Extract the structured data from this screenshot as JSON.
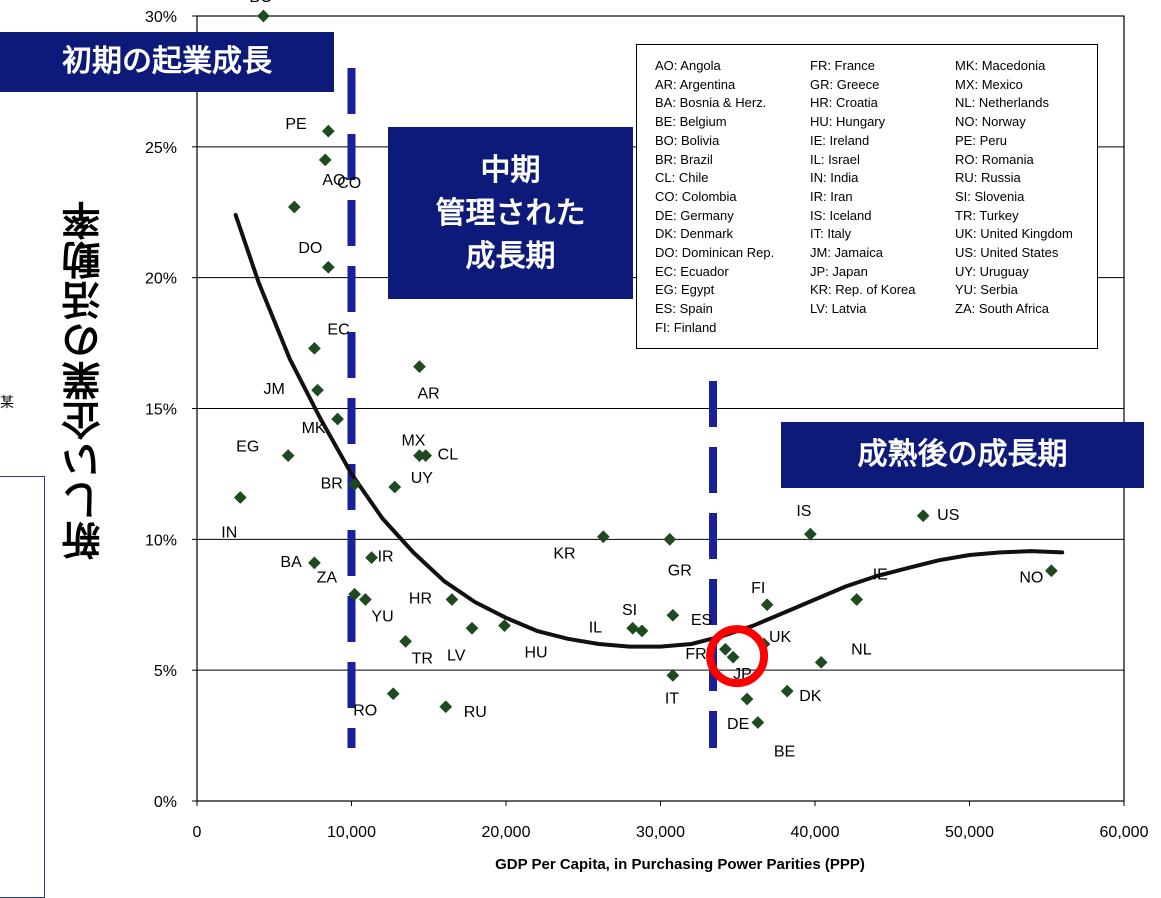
{
  "phases": {
    "early": "初期の起業成長",
    "mid": [
      "中期",
      "管理された",
      "成長期"
    ],
    "late": "成熟後の成長期"
  },
  "side_glyph": "某",
  "legend": [
    [
      "AO: Angola",
      "AR: Argentina",
      "BA: Bosnia & Herz.",
      "BE: Belgium",
      "BO: Bolivia",
      "BR: Brazil",
      "CL: Chile",
      "CO: Colombia",
      "DE: Germany",
      "DK: Denmark",
      "DO: Dominican Rep.",
      "EC: Ecuador",
      "EG: Egypt",
      "ES: Spain",
      "FI:  Finland"
    ],
    [
      "FR: France",
      "GR: Greece",
      "HR: Croatia",
      "HU: Hungary",
      "IE:  Ireland",
      "IL:  Israel",
      "IN:  India",
      "IR:  Iran",
      "IS:  Iceland",
      "IT:  Italy",
      "JM: Jamaica",
      "JP: Japan",
      "KR: Rep. of Korea",
      "LV:  Latvia"
    ],
    [
      "MK: Macedonia",
      "MX: Mexico",
      "NL: Netherlands",
      "NO: Norway",
      "PE: Peru",
      "RO: Romania",
      "RU: Russia",
      "SI:  Slovenia",
      "TR: Turkey",
      "UK: United Kingdom",
      "US: United States",
      "UY: Uruguay",
      "YU: Serbia",
      "ZA: South Africa"
    ]
  ],
  "colors": {
    "phase_box": "#0e1a7a",
    "marker": "#1f4a1f",
    "divider": "#1a1f9a",
    "highlight": "#ff0000"
  },
  "chart_data": {
    "type": "scatter",
    "xlabel": "GDP Per Capita, in Purchasing Power Parities (PPP)",
    "ylabel": "新しい企業の活動率",
    "xlim": [
      0,
      60000
    ],
    "ylim": [
      0,
      30
    ],
    "x_ticks": [
      "0",
      "10,000",
      "20,000",
      "30,000",
      "40,000",
      "50,000",
      "60,000"
    ],
    "y_ticks": [
      "0%",
      "5%",
      "10%",
      "15%",
      "20%",
      "25%",
      "30%"
    ],
    "grid": "horizontal",
    "legend_position": "top-right",
    "highlighted": "JP",
    "phase_dividers_x": [
      10000,
      33400
    ],
    "points": [
      {
        "label": "BO",
        "x": 4300,
        "y": 30.0
      },
      {
        "label": "PE",
        "x": 8500,
        "y": 25.6
      },
      {
        "label": "CO",
        "x": 8300,
        "y": 24.5
      },
      {
        "label": "AO",
        "x": 6300,
        "y": 22.7
      },
      {
        "label": "DO",
        "x": 8500,
        "y": 20.4
      },
      {
        "label": "EC",
        "x": 7600,
        "y": 17.3
      },
      {
        "label": "JM",
        "x": 7800,
        "y": 15.7
      },
      {
        "label": "MK",
        "x": 9100,
        "y": 14.6
      },
      {
        "label": "EG",
        "x": 5900,
        "y": 13.2
      },
      {
        "label": "BR",
        "x": 10200,
        "y": 12.1
      },
      {
        "label": "IN",
        "x": 2800,
        "y": 11.6
      },
      {
        "label": "BA",
        "x": 7600,
        "y": 9.1
      },
      {
        "label": "ZA",
        "x": 10200,
        "y": 7.9
      },
      {
        "label": "YU",
        "x": 10900,
        "y": 7.7
      },
      {
        "label": "AR",
        "x": 14400,
        "y": 16.6
      },
      {
        "label": "MX",
        "x": 14400,
        "y": 13.2
      },
      {
        "label": "CL",
        "x": 14800,
        "y": 13.2
      },
      {
        "label": "UY",
        "x": 12800,
        "y": 12.0
      },
      {
        "label": "IR",
        "x": 11300,
        "y": 9.3
      },
      {
        "label": "HR",
        "x": 16500,
        "y": 7.7
      },
      {
        "label": "TR",
        "x": 13500,
        "y": 6.1
      },
      {
        "label": "LV",
        "x": 17800,
        "y": 6.6
      },
      {
        "label": "HU",
        "x": 19900,
        "y": 6.7
      },
      {
        "label": "RO",
        "x": 12700,
        "y": 4.1
      },
      {
        "label": "RU",
        "x": 16100,
        "y": 3.6
      },
      {
        "label": "KR",
        "x": 26300,
        "y": 10.1
      },
      {
        "label": "GR",
        "x": 30600,
        "y": 10.0
      },
      {
        "label": "IL",
        "x": 28200,
        "y": 6.6
      },
      {
        "label": "SI",
        "x": 28800,
        "y": 6.5
      },
      {
        "label": "ES",
        "x": 30800,
        "y": 7.1
      },
      {
        "label": "IT",
        "x": 30800,
        "y": 4.8
      },
      {
        "label": "FR",
        "x": 34200,
        "y": 5.8
      },
      {
        "label": "JP",
        "x": 34700,
        "y": 5.5
      },
      {
        "label": "DE",
        "x": 35600,
        "y": 3.9
      },
      {
        "label": "BE",
        "x": 36300,
        "y": 3.0
      },
      {
        "label": "FI",
        "x": 36900,
        "y": 7.5
      },
      {
        "label": "UK",
        "x": 36700,
        "y": 6.0
      },
      {
        "label": "DK",
        "x": 38200,
        "y": 4.2
      },
      {
        "label": "NL",
        "x": 40400,
        "y": 5.3
      },
      {
        "label": "IS",
        "x": 39700,
        "y": 10.2
      },
      {
        "label": "IE",
        "x": 42700,
        "y": 7.7
      },
      {
        "label": "US",
        "x": 47000,
        "y": 10.9
      },
      {
        "label": "NO",
        "x": 55300,
        "y": 8.8
      }
    ],
    "trend_curve": [
      [
        2500,
        22.4
      ],
      [
        4000,
        19.8
      ],
      [
        6000,
        16.9
      ],
      [
        8000,
        14.6
      ],
      [
        10000,
        12.5
      ],
      [
        12000,
        10.8
      ],
      [
        14000,
        9.5
      ],
      [
        16000,
        8.4
      ],
      [
        18000,
        7.6
      ],
      [
        20000,
        7.0
      ],
      [
        22000,
        6.5
      ],
      [
        24000,
        6.2
      ],
      [
        26000,
        6.0
      ],
      [
        28000,
        5.9
      ],
      [
        30000,
        5.9
      ],
      [
        32000,
        6.0
      ],
      [
        34000,
        6.3
      ],
      [
        36000,
        6.7
      ],
      [
        38000,
        7.2
      ],
      [
        40000,
        7.7
      ],
      [
        42000,
        8.2
      ],
      [
        44000,
        8.6
      ],
      [
        46000,
        8.9
      ],
      [
        48000,
        9.2
      ],
      [
        50000,
        9.4
      ],
      [
        52000,
        9.5
      ],
      [
        54000,
        9.55
      ],
      [
        56000,
        9.5
      ]
    ]
  }
}
